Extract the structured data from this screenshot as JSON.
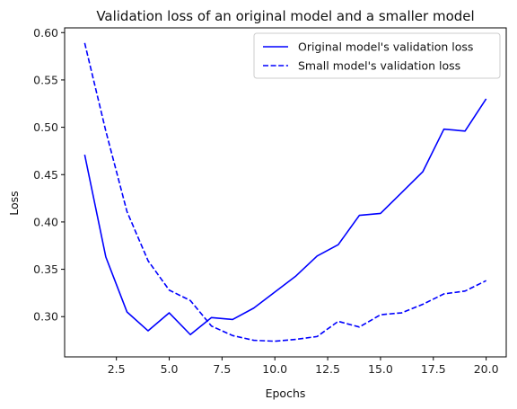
{
  "chart_data": {
    "type": "line",
    "title": "Validation loss of an original model and a smaller model",
    "xlabel": "Epochs",
    "ylabel": "Loss",
    "xlim": [
      0.05,
      20.95
    ],
    "ylim": [
      0.2575,
      0.605
    ],
    "xticks": [
      2.5,
      5.0,
      7.5,
      10.0,
      12.5,
      15.0,
      17.5,
      20.0
    ],
    "xtick_labels": [
      "2.5",
      "5.0",
      "7.5",
      "10.0",
      "12.5",
      "15.0",
      "17.5",
      "20.0"
    ],
    "yticks": [
      0.3,
      0.35,
      0.4,
      0.45,
      0.5,
      0.55,
      0.6
    ],
    "ytick_labels": [
      "0.30",
      "0.35",
      "0.40",
      "0.45",
      "0.50",
      "0.55",
      "0.60"
    ],
    "grid": false,
    "legend_position": "top-right",
    "x": [
      1,
      2,
      3,
      4,
      5,
      6,
      7,
      8,
      9,
      10,
      11,
      12,
      13,
      14,
      15,
      16,
      17,
      18,
      19,
      20
    ],
    "series": [
      {
        "name": "Original model's validation loss",
        "style": "solid",
        "color": "#0000ff",
        "values": [
          0.471,
          0.363,
          0.305,
          0.285,
          0.304,
          0.281,
          0.299,
          0.297,
          0.309,
          0.326,
          0.343,
          0.364,
          0.376,
          0.407,
          0.409,
          0.431,
          0.453,
          0.498,
          0.496,
          0.53
        ]
      },
      {
        "name": "Small model's validation loss",
        "style": "dashed",
        "color": "#0000ff",
        "values": [
          0.589,
          0.496,
          0.411,
          0.359,
          0.328,
          0.317,
          0.29,
          0.28,
          0.275,
          0.274,
          0.276,
          0.279,
          0.295,
          0.289,
          0.302,
          0.304,
          0.313,
          0.324,
          0.327,
          0.338
        ]
      }
    ]
  }
}
